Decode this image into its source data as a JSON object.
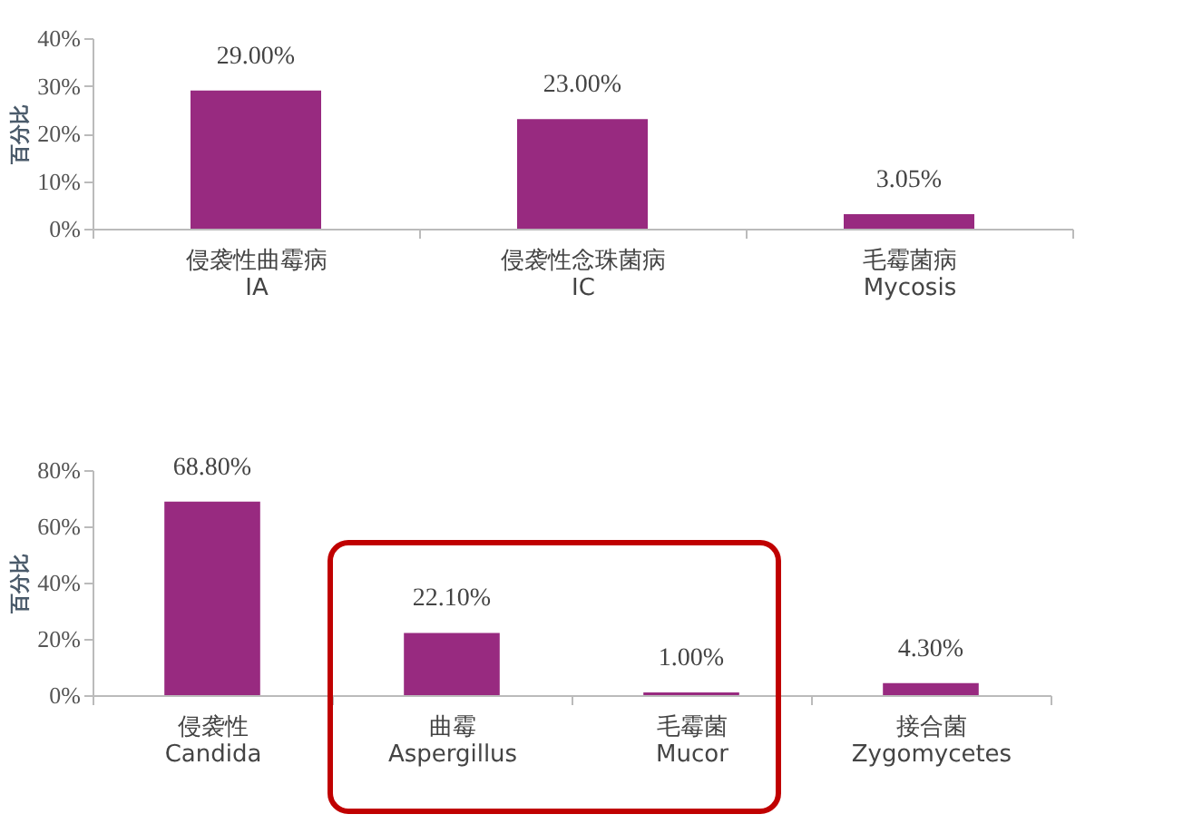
{
  "chart_data": [
    {
      "type": "bar",
      "ylabel": "百分比",
      "categories": [
        "侵袭性曲霉病\nIA",
        "侵袭性念珠菌病\nIC",
        "毛霉菌病\nMycosis"
      ],
      "values": [
        29.0,
        23.0,
        3.05
      ],
      "color": "#982a80",
      "value_labels": [
        "29.00%",
        "23.00%",
        "3.05%"
      ],
      "ylim": [
        0,
        40
      ],
      "yticks": [
        {
          "value": 0,
          "label": "0%"
        },
        {
          "value": 10,
          "label": "10%"
        },
        {
          "value": 20,
          "label": "20%"
        },
        {
          "value": 30,
          "label": "30%"
        },
        {
          "value": 40,
          "label": "40%"
        }
      ],
      "grid": false
    },
    {
      "type": "bar",
      "ylabel": "百分比",
      "categories": [
        "侵袭性\nCandida",
        "曲霉\nAspergillus",
        "毛霉菌\nMucor",
        "接合菌\nZygomycetes"
      ],
      "values": [
        68.8,
        22.1,
        1.0,
        4.3
      ],
      "color": "#982a80",
      "value_labels": [
        "68.80%",
        "22.10%",
        "1.00%",
        "4.30%"
      ],
      "ylim": [
        0,
        80
      ],
      "yticks": [
        {
          "value": 0,
          "label": "0%"
        },
        {
          "value": 20,
          "label": "20%"
        },
        {
          "value": 40,
          "label": "40%"
        },
        {
          "value": 60,
          "label": "60%"
        },
        {
          "value": 80,
          "label": "80%"
        }
      ],
      "grid": false
    }
  ]
}
